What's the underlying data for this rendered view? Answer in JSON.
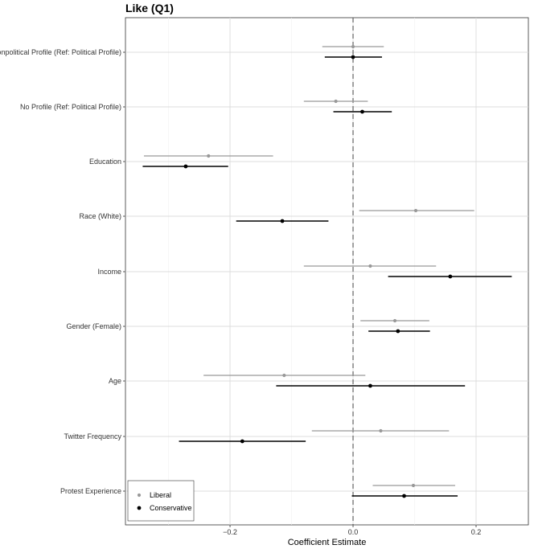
{
  "chart_data": {
    "type": "forest",
    "title": "Like (Q1)",
    "xlabel": "Coefficient Estimate",
    "ylabel": "",
    "xlim": [
      -0.37,
      0.285
    ],
    "x_ticks": [
      -0.2,
      0.0,
      0.2
    ],
    "x_tick_labels": [
      "−0.2",
      "0.0",
      "0.2"
    ],
    "reference_line": 0.0,
    "grid": true,
    "legend_position": "bottom-left",
    "categories": [
      "Nonpolitical Profile (Ref: Political Profile)",
      "No Profile (Ref: Political Profile)",
      "Education",
      "Race (White)",
      "Income",
      "Gender (Female)",
      "Age",
      "Twitter Frequency",
      "Protest Experience"
    ],
    "series": [
      {
        "name": "Liberal",
        "color": "#999999",
        "estimates": [
          0.0,
          -0.028,
          -0.235,
          0.102,
          0.028,
          0.068,
          -0.112,
          0.045,
          0.098
        ],
        "lower": [
          -0.05,
          -0.08,
          -0.34,
          0.01,
          -0.08,
          0.012,
          -0.243,
          -0.067,
          0.032
        ],
        "upper": [
          0.05,
          0.024,
          -0.13,
          0.197,
          0.135,
          0.124,
          0.02,
          0.156,
          0.166
        ]
      },
      {
        "name": "Conservative",
        "color": "#000000",
        "estimates": [
          0.0,
          0.015,
          -0.272,
          -0.115,
          0.158,
          0.073,
          0.028,
          -0.18,
          0.083
        ],
        "lower": [
          -0.046,
          -0.032,
          -0.342,
          -0.19,
          0.057,
          0.025,
          -0.125,
          -0.283,
          -0.002
        ],
        "upper": [
          0.047,
          0.063,
          -0.203,
          -0.04,
          0.258,
          0.125,
          0.182,
          -0.077,
          0.17
        ]
      }
    ]
  }
}
